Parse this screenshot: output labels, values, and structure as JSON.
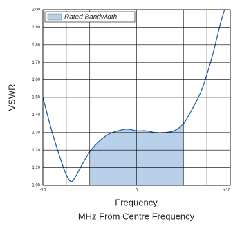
{
  "chart_data": {
    "type": "line",
    "y_label": "VSWR",
    "x_label": "Frequency",
    "x_sublabel": "MHz From Centre Frequency",
    "x": [
      -10,
      -9,
      -8,
      -7.5,
      -7,
      -6.5,
      -6,
      -5,
      -4,
      -3,
      -2,
      -1,
      0,
      1,
      2,
      3,
      4,
      5,
      6,
      7,
      8,
      9,
      9.4
    ],
    "series": [
      {
        "name": "VSWR",
        "color": "#1f5fa8",
        "values": [
          1.5,
          1.3,
          1.13,
          1.06,
          1.02,
          1.05,
          1.1,
          1.19,
          1.25,
          1.29,
          1.31,
          1.32,
          1.31,
          1.31,
          1.3,
          1.3,
          1.31,
          1.35,
          1.44,
          1.55,
          1.72,
          1.93,
          2.0
        ]
      }
    ],
    "band": {
      "name": "Rated Bandwidth",
      "color": "#b8d0ea",
      "range": [
        -5,
        5
      ]
    },
    "xlim": [
      -10,
      10
    ],
    "ylim": [
      1,
      2
    ],
    "xticks": [
      -10,
      0,
      {
        "value": 10,
        "label": "+10"
      }
    ],
    "xgrid": [
      -10,
      -7.5,
      -5,
      -2.5,
      0,
      2.5,
      5,
      7.5,
      10
    ],
    "yticks": [
      {
        "value": 1,
        "label": "1.00"
      },
      {
        "value": 1.1,
        "label": "1.10"
      },
      {
        "value": 1.2,
        "label": "1.20"
      },
      {
        "value": 1.3,
        "label": "1.30"
      },
      {
        "value": 1.4,
        "label": "1.40"
      },
      {
        "value": 1.5,
        "label": "1.50"
      },
      {
        "value": 1.6,
        "label": "1.60"
      },
      {
        "value": 1.7,
        "label": "1.70"
      },
      {
        "value": 1.8,
        "label": "1.80"
      },
      {
        "value": 1.9,
        "label": "1.90"
      },
      {
        "value": 2,
        "label": "2.00"
      }
    ],
    "grid": true,
    "legend": "top-left"
  }
}
